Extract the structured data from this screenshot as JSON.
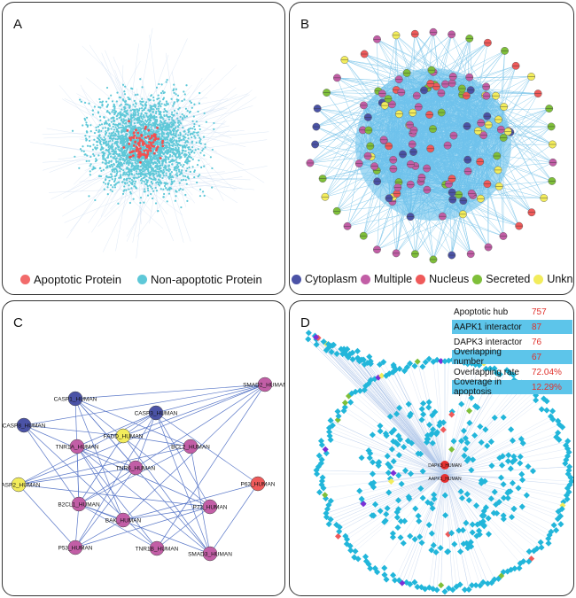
{
  "panels": {
    "a": {
      "label": "A"
    },
    "b": {
      "label": "B"
    },
    "c": {
      "label": "C"
    },
    "d": {
      "label": "D"
    }
  },
  "legend_a": [
    {
      "label": "Apoptotic Protein",
      "color": "#f26b6b"
    },
    {
      "label": "Non-apoptotic Protein",
      "color": "#5ec8d8"
    }
  ],
  "legend_b": [
    {
      "label": "Cytoplasm",
      "color": "#4b53a6"
    },
    {
      "label": "Multiple",
      "color": "#c25ea6"
    },
    {
      "label": "Nucleus",
      "color": "#ef5a5a"
    },
    {
      "label": "Secreted",
      "color": "#7fbf3a"
    },
    {
      "label": "Unknown",
      "color": "#f2ec5c"
    }
  ],
  "network_c": {
    "nodes": [
      {
        "id": "CASP1_HUMAN",
        "loc": "Cytoplasm"
      },
      {
        "id": "CASP3_HUMAN",
        "loc": "Cytoplasm"
      },
      {
        "id": "SMAD2_HUMAN",
        "loc": "Multiple"
      },
      {
        "id": "CASP8_HUMAN",
        "loc": "Cytoplasm"
      },
      {
        "id": "TNR1A_HUMAN",
        "loc": "Multiple"
      },
      {
        "id": "FADD_HUMAN",
        "loc": "Unknown"
      },
      {
        "id": "BCL2_HUMAN",
        "loc": "Multiple"
      },
      {
        "id": "TNR6_HUMAN",
        "loc": "Multiple"
      },
      {
        "id": "CASP2_HUMAN",
        "loc": "Unknown"
      },
      {
        "id": "P63_HUMAN",
        "loc": "Nucleus"
      },
      {
        "id": "B2CL1_HUMAN",
        "loc": "Multiple"
      },
      {
        "id": "BAK_HUMAN",
        "loc": "Multiple"
      },
      {
        "id": "P73_HUMAN",
        "loc": "Multiple"
      },
      {
        "id": "P53_HUMAN",
        "loc": "Multiple"
      },
      {
        "id": "TNR1B_HUMAN",
        "loc": "Multiple"
      },
      {
        "id": "SMAD3_HUMAN",
        "loc": "Multiple"
      }
    ]
  },
  "network_d": {
    "hubs": [
      "DAPK3_HUMAN",
      "AAPK1_HUMAN"
    ],
    "stats": [
      {
        "label": "Apoptotic hub",
        "value": "757"
      },
      {
        "label": "AAPK1 interactor",
        "value": "87"
      },
      {
        "label": "DAPK3 interactor",
        "value": "76"
      },
      {
        "label": "Overlapping number",
        "value": "67"
      },
      {
        "label": "Overlapping rate",
        "value": "72.04%"
      },
      {
        "label": "Coverage in apoptosis",
        "value": "12.29%"
      }
    ]
  }
}
